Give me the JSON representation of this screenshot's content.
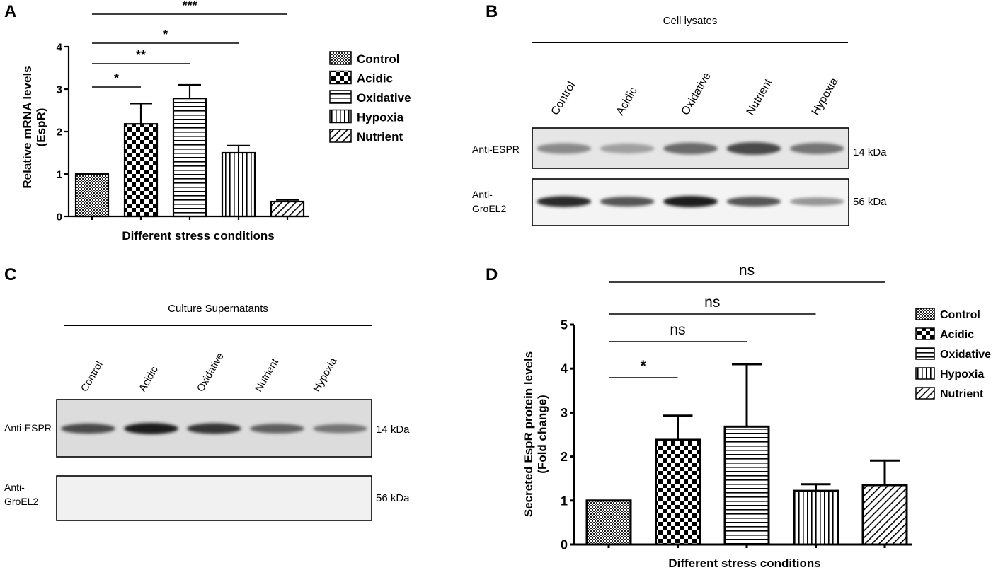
{
  "figure": {
    "panel_letters": [
      "A",
      "B",
      "C",
      "D"
    ]
  },
  "chart_data": [
    {
      "panel": "A",
      "type": "bar",
      "xlabel": "Different stress conditions",
      "ylabel_lines": [
        "Relative mRNA levels",
        "(EspR)"
      ],
      "ylim": [
        0,
        4
      ],
      "yticks": [
        "0",
        "1",
        "2",
        "3",
        "4"
      ],
      "categories": [
        "Control",
        "Acidic",
        "Oxidative",
        "Hypoxia",
        "Nutrient"
      ],
      "values": [
        1.0,
        2.18,
        2.78,
        1.5,
        0.35
      ],
      "errors": [
        0.0,
        0.48,
        0.32,
        0.17,
        0.04
      ],
      "patterns": [
        "fine-check",
        "check",
        "hstripe",
        "vstripe",
        "diag"
      ],
      "legend": [
        "Control",
        "Acidic",
        "Oxidative",
        "Hypoxia",
        "Nutrient"
      ],
      "legend_position": "right",
      "significance": [
        {
          "label": "***",
          "from": 0,
          "to": 4
        },
        {
          "label": "*",
          "from": 0,
          "to": 3
        },
        {
          "label": "**",
          "from": 0,
          "to": 2
        },
        {
          "label": "*",
          "from": 0,
          "to": 1
        }
      ]
    },
    {
      "panel": "D",
      "type": "bar",
      "xlabel": "Different stress conditions",
      "ylabel_lines": [
        "Secreted EspR protein levels",
        "(Fold change)"
      ],
      "ylim": [
        0,
        5
      ],
      "yticks": [
        "0",
        "1",
        "2",
        "3",
        "4",
        "5"
      ],
      "categories": [
        "Control",
        "Acidic",
        "Oxidative",
        "Hypoxia",
        "Nutrient"
      ],
      "values": [
        1.0,
        2.38,
        2.68,
        1.22,
        1.35
      ],
      "errors": [
        0.0,
        0.55,
        1.42,
        0.15,
        0.56
      ],
      "patterns": [
        "fine-check",
        "check",
        "hstripe",
        "vstripe",
        "diag"
      ],
      "legend": [
        "Control",
        "Acidic",
        "Oxidative",
        "Hypoxia",
        "Nutrient"
      ],
      "legend_position": "right",
      "significance": [
        {
          "label": "ns",
          "from": 0,
          "to": 4
        },
        {
          "label": "ns",
          "from": 0,
          "to": 3
        },
        {
          "label": "ns",
          "from": 0,
          "to": 2
        },
        {
          "label": "*",
          "from": 0,
          "to": 1
        }
      ]
    },
    {
      "panel": "B",
      "type": "table",
      "title": "Cell lysates",
      "lanes": [
        "Control",
        "Acidic",
        "Oxidative",
        "Nutrient",
        "Hypoxia"
      ],
      "blots": [
        {
          "label": [
            "Anti-ESPR"
          ],
          "size": "14 kDa",
          "band_intensity": [
            0.45,
            0.35,
            0.6,
            0.75,
            0.55
          ]
        },
        {
          "label": [
            "Anti-",
            "GroEL2"
          ],
          "size": "56 kDa",
          "band_intensity": [
            0.9,
            0.7,
            0.95,
            0.7,
            0.4
          ]
        }
      ]
    },
    {
      "panel": "C",
      "type": "table",
      "title": "Culture Supernatants",
      "lanes": [
        "Control",
        "Acidic",
        "Oxidative",
        "Nutrient",
        "Hypoxia"
      ],
      "blots": [
        {
          "label": [
            "Anti-ESPR"
          ],
          "size": "14 kDa",
          "band_intensity": [
            0.75,
            0.95,
            0.85,
            0.65,
            0.55
          ]
        },
        {
          "label": [
            "Anti-",
            "GroEL2"
          ],
          "size": "56 kDa",
          "band_intensity": [
            0,
            0,
            0,
            0,
            0
          ]
        }
      ]
    }
  ]
}
